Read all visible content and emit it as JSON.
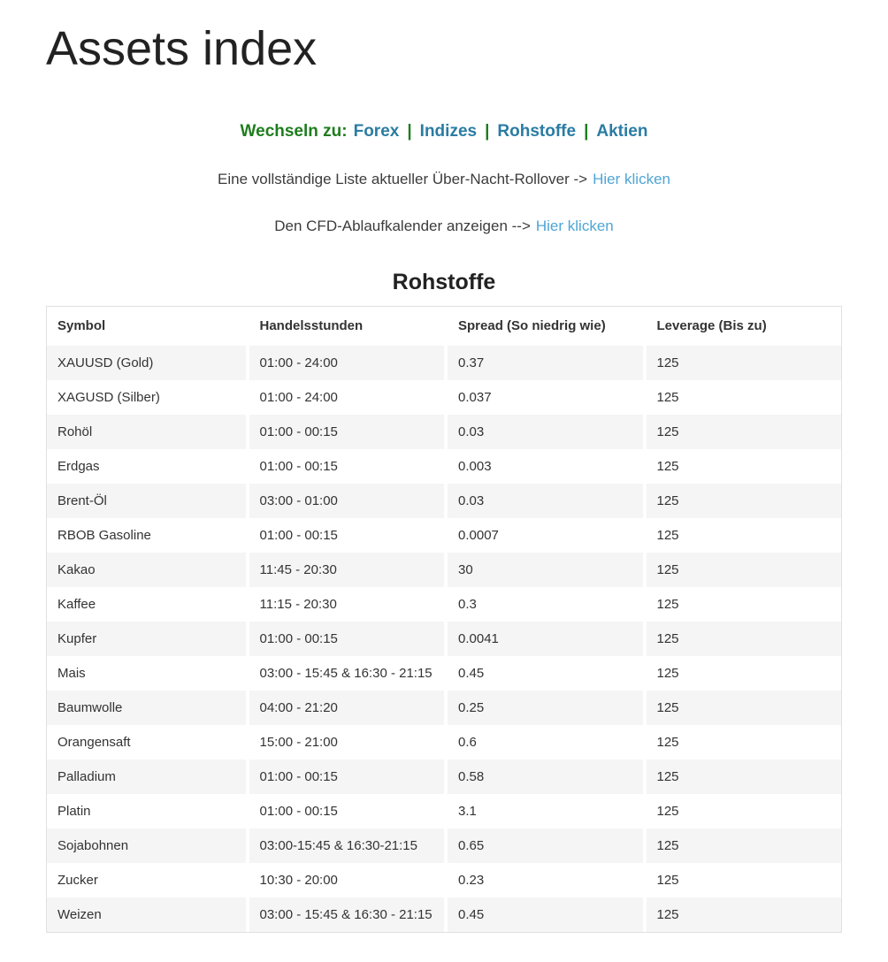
{
  "page": {
    "title": "Assets index"
  },
  "nav": {
    "label": "Wechseln zu:",
    "separator": "|",
    "links": [
      {
        "label": "Forex"
      },
      {
        "label": "Indizes"
      },
      {
        "label": "Rohstoffe"
      },
      {
        "label": "Aktien"
      }
    ]
  },
  "notices": [
    {
      "text": "Eine vollständige Liste aktueller Über-Nacht-Rollover ->",
      "link": "Hier klicken"
    },
    {
      "text": "Den CFD-Ablaufkalender anzeigen -->",
      "link": "Hier klicken"
    }
  ],
  "table": {
    "title": "Rohstoffe",
    "columns": [
      "Symbol",
      "Handelsstunden",
      "Spread (So niedrig wie)",
      "Leverage (Bis zu)"
    ],
    "rows": [
      [
        "XAUUSD (Gold)",
        "01:00 - 24:00",
        "0.37",
        "125"
      ],
      [
        "XAGUSD (Silber)",
        "01:00 - 24:00",
        "0.037",
        "125"
      ],
      [
        "Rohöl",
        "01:00 - 00:15",
        "0.03",
        "125"
      ],
      [
        "Erdgas",
        "01:00 - 00:15",
        "0.003",
        "125"
      ],
      [
        "Brent-Öl",
        "03:00 - 01:00",
        "0.03",
        "125"
      ],
      [
        "RBOB Gasoline",
        "01:00 - 00:15",
        "0.0007",
        "125"
      ],
      [
        "Kakao",
        "11:45 - 20:30",
        "30",
        "125"
      ],
      [
        "Kaffee",
        "11:15 - 20:30",
        "0.3",
        "125"
      ],
      [
        "Kupfer",
        "01:00 - 00:15",
        "0.0041",
        "125"
      ],
      [
        "Mais",
        "03:00 - 15:45 & 16:30 - 21:15",
        "0.45",
        "125"
      ],
      [
        "Baumwolle",
        "04:00 - 21:20",
        "0.25",
        "125"
      ],
      [
        "Orangensaft",
        "15:00 - 21:00",
        "0.6",
        "125"
      ],
      [
        "Palladium",
        "01:00 - 00:15",
        "0.58",
        "125"
      ],
      [
        "Platin",
        "01:00 - 00:15",
        "3.1",
        "125"
      ],
      [
        "Sojabohnen",
        "03:00-15:45 & 16:30-21:15",
        "0.65",
        "125"
      ],
      [
        "Zucker",
        "10:30 - 20:00",
        "0.23",
        "125"
      ],
      [
        "Weizen",
        "03:00 - 15:45 & 16:30 - 21:15",
        "0.45",
        "125"
      ]
    ]
  },
  "colors": {
    "nav_label_green": "#1e7d1e",
    "nav_link_blue": "#2a7ca3",
    "notice_link_blue": "#4fa5d5",
    "row_stripe": "#f5f5f5",
    "table_border": "#e0e0e0"
  }
}
